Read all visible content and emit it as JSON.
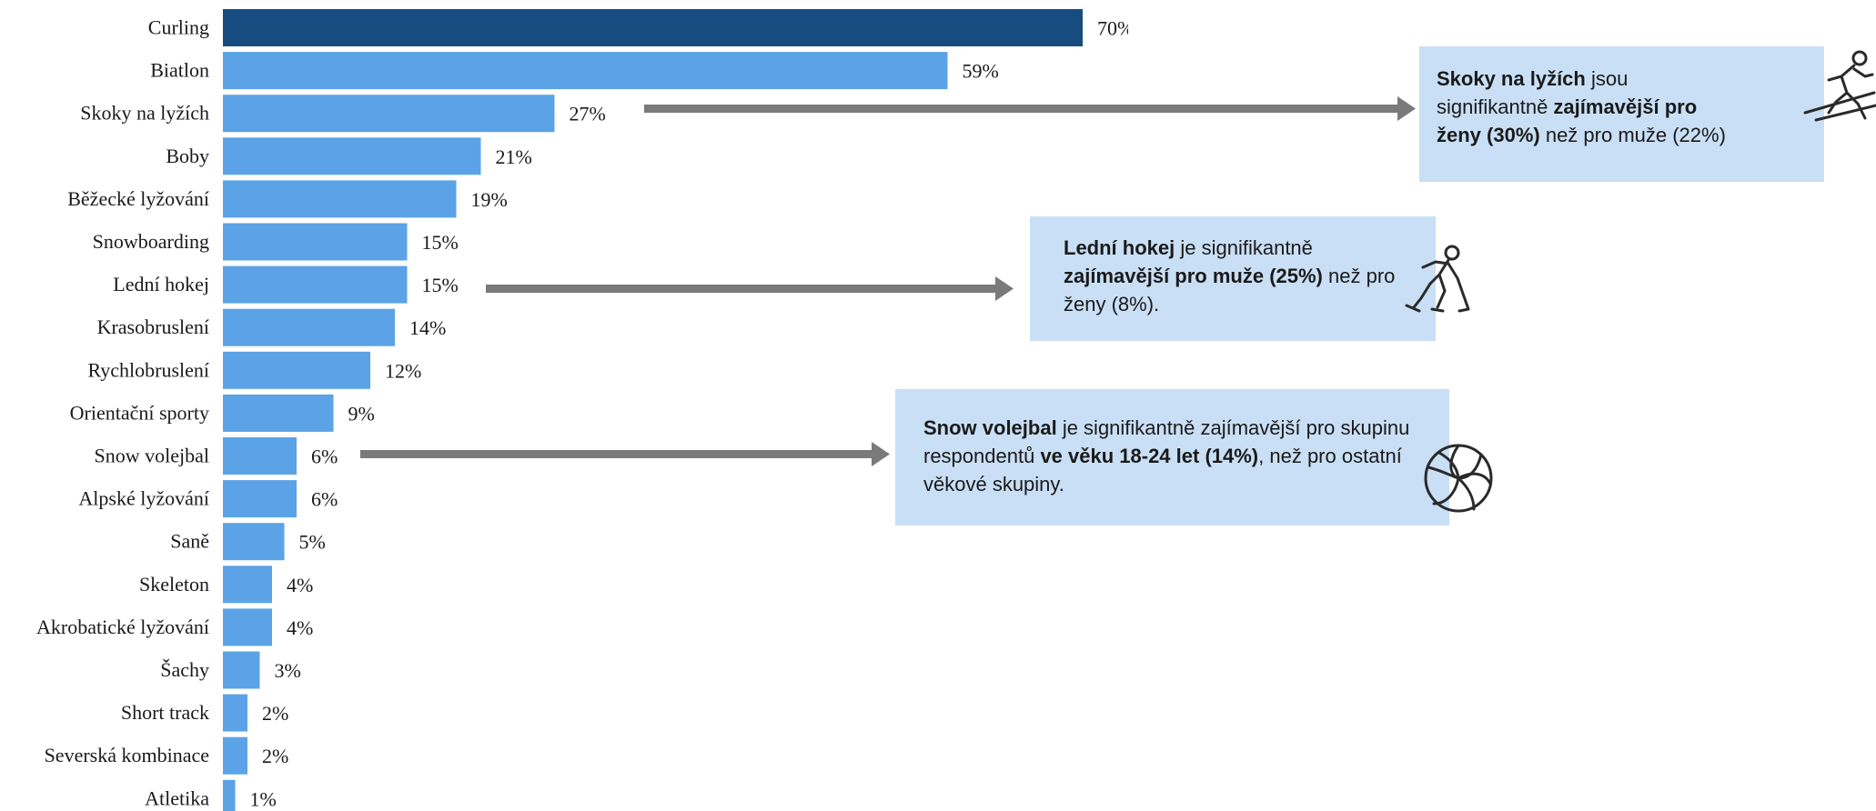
{
  "colors": {
    "highlight_bar": "#174c80",
    "bar": "#5ba3e6",
    "callout_bg": "#c9dff5",
    "arrow": "#7a7a7a"
  },
  "chart_data": {
    "type": "bar",
    "orientation": "horizontal",
    "categories": [
      "Curling",
      "Biatlon",
      "Skoky na lyžích",
      "Boby",
      "Běžecké lyžování",
      "Snowboarding",
      "Lední hokej",
      "Krasobruslení",
      "Rychlobruslení",
      "Orientační sporty",
      "Snow volejbal",
      "Alpské lyžování",
      "Saně",
      "Skeleton",
      "Akrobatické lyžování",
      "Šachy",
      "Short track",
      "Severská kombinace",
      "Atletika"
    ],
    "values": [
      70,
      59,
      27,
      21,
      19,
      15,
      15,
      14,
      12,
      9,
      6,
      6,
      5,
      4,
      4,
      3,
      2,
      2,
      1
    ],
    "value_labels": [
      "70%",
      "59%",
      "27%",
      "21%",
      "19%",
      "15%",
      "15%",
      "14%",
      "12%",
      "9%",
      "6%",
      "6%",
      "5%",
      "4%",
      "4%",
      "3%",
      "2%",
      "2%",
      "1%"
    ],
    "highlight_index": 0,
    "xlim": [
      0,
      100
    ],
    "grid": false
  },
  "callouts": [
    {
      "id": "ski-jumping",
      "icon": "ski-jumper-icon",
      "parts": [
        {
          "text": "Skoky na lyžích",
          "bold": true
        },
        {
          "text": " jsou signifikantně ",
          "bold": false
        },
        {
          "text": "zajímavější pro ženy (30%)",
          "bold": true
        },
        {
          "text": " než pro muže (22%)",
          "bold": false
        }
      ]
    },
    {
      "id": "ice-hockey",
      "icon": "hockey-player-icon",
      "parts": [
        {
          "text": "Lední hokej",
          "bold": true
        },
        {
          "text": " je signifikantně ",
          "bold": false
        },
        {
          "text": "zajímavější pro muže (25%)",
          "bold": true
        },
        {
          "text": " než pro ženy (8%).",
          "bold": false
        }
      ]
    },
    {
      "id": "snow-volleyball",
      "icon": "volleyball-icon",
      "parts": [
        {
          "text": "Snow volejbal",
          "bold": true
        },
        {
          "text": " je signifikantně zajímavější pro skupinu respondentů ",
          "bold": false
        },
        {
          "text": "ve věku 18-24 let (14%)",
          "bold": true
        },
        {
          "text": ", než pro ostatní věkové skupiny.",
          "bold": false
        }
      ]
    }
  ]
}
